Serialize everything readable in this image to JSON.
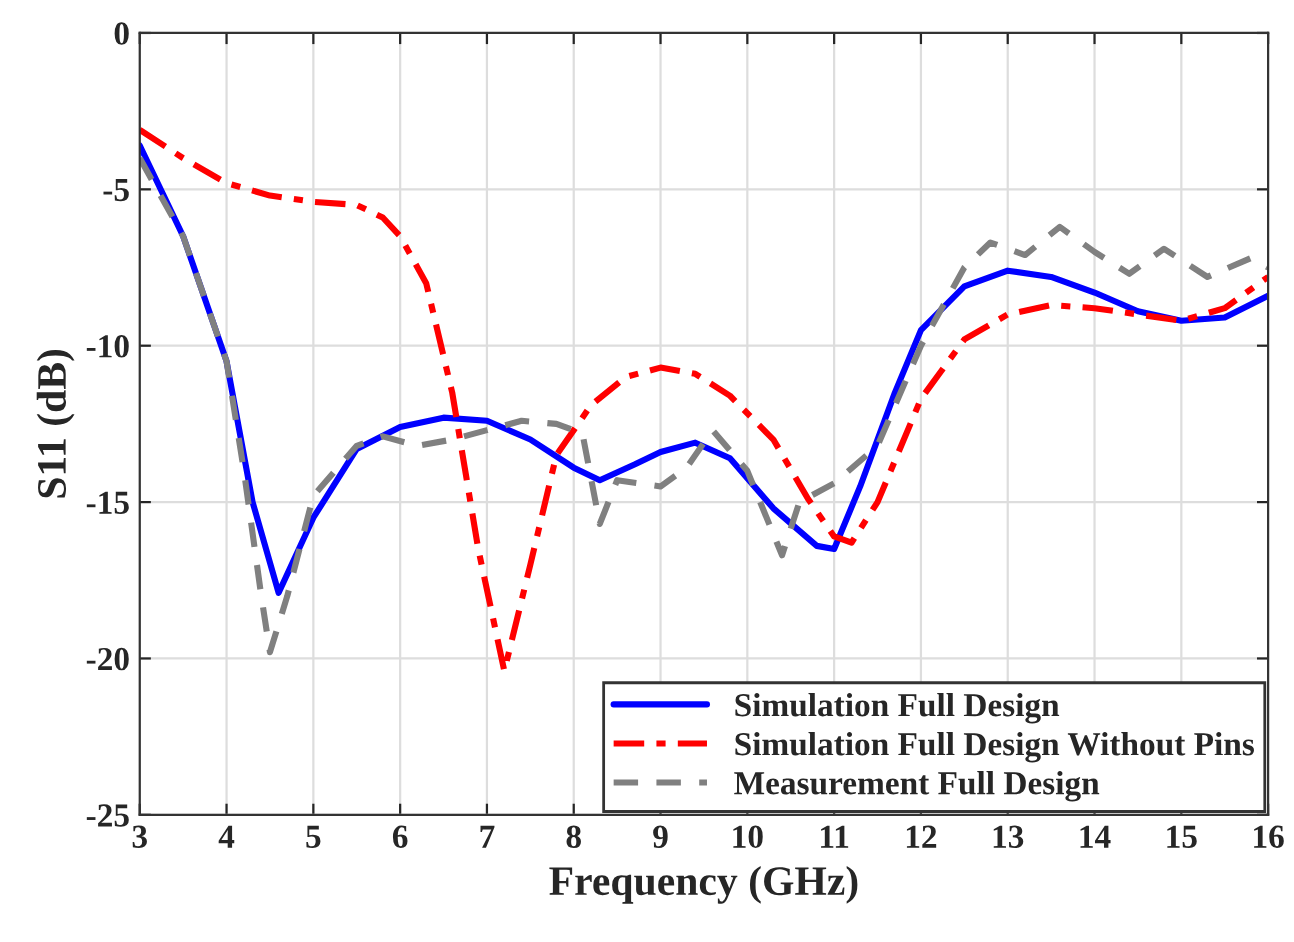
{
  "chart_data": {
    "type": "line",
    "xlabel": "Frequency (GHz)",
    "ylabel": "S11 (dB)",
    "xlim": [
      3,
      16
    ],
    "xticks": [
      3,
      4,
      5,
      6,
      7,
      8,
      9,
      10,
      11,
      12,
      13,
      14,
      15,
      16
    ],
    "ylim": [
      -25,
      0
    ],
    "yticks": [
      -25,
      -20,
      -15,
      -10,
      -5,
      0
    ],
    "grid": true,
    "legend": "bottom right",
    "series": [
      {
        "name": "Simulation Full Design",
        "color": "#0000ff",
        "line_style": "solid",
        "x": [
          3,
          3.5,
          4,
          4.3,
          4.6,
          5,
          5.5,
          6,
          6.5,
          7,
          7.5,
          8,
          8.3,
          8.7,
          9,
          9.4,
          9.8,
          10.3,
          10.8,
          11,
          11.3,
          11.7,
          12,
          12.5,
          13,
          13.5,
          14,
          14.5,
          15,
          15.5,
          16
        ],
        "values": [
          -3.6,
          -6.5,
          -10.5,
          -15,
          -17.9,
          -15.5,
          -13.3,
          -12.6,
          -12.3,
          -12.4,
          -13,
          -13.9,
          -14.3,
          -13.8,
          -13.4,
          -13.1,
          -13.6,
          -15.2,
          -16.4,
          -16.5,
          -14.5,
          -11.5,
          -9.5,
          -8.1,
          -7.6,
          -7.8,
          -8.3,
          -8.9,
          -9.2,
          -9.1,
          -8.4
        ]
      },
      {
        "name": "Simulation Full Design Without Pins",
        "color": "#ff0000",
        "line_style": "dashdot",
        "x": [
          3,
          3.5,
          4,
          4.5,
          5,
          5.5,
          5.8,
          6,
          6.3,
          6.6,
          6.9,
          7.2,
          7.5,
          7.8,
          8.2,
          8.6,
          9,
          9.4,
          9.8,
          10.3,
          10.7,
          11,
          11.2,
          11.5,
          12,
          12.5,
          13,
          13.5,
          14,
          14.5,
          15,
          15.5,
          16
        ],
        "values": [
          -3.1,
          -4.0,
          -4.8,
          -5.2,
          -5.4,
          -5.5,
          -5.9,
          -6.5,
          -8.0,
          -11.5,
          -16.5,
          -20.4,
          -17,
          -13.5,
          -11.9,
          -11.0,
          -10.7,
          -10.9,
          -11.6,
          -13.0,
          -14.9,
          -16.1,
          -16.3,
          -15,
          -11.7,
          -9.8,
          -9.0,
          -8.7,
          -8.8,
          -9.0,
          -9.2,
          -8.8,
          -7.8
        ]
      },
      {
        "name": "Measurement Full Design",
        "color": "#808080",
        "line_style": "dashed",
        "x": [
          3,
          3.5,
          4,
          4.2,
          4.4,
          4.5,
          4.7,
          5,
          5.5,
          5.8,
          6.2,
          6.6,
          7,
          7.4,
          7.8,
          8.1,
          8.3,
          8.5,
          9,
          9.3,
          9.6,
          10,
          10.4,
          10.6,
          11,
          11.5,
          12,
          12.5,
          12.8,
          13.2,
          13.6,
          14,
          14.4,
          14.8,
          15.3,
          15.8,
          16
        ],
        "values": [
          -4,
          -6.5,
          -10.5,
          -14,
          -18,
          -19.8,
          -18,
          -14.8,
          -13.2,
          -12.9,
          -13.2,
          -13,
          -12.7,
          -12.4,
          -12.5,
          -12.8,
          -15.7,
          -14.3,
          -14.5,
          -13.9,
          -12.7,
          -14,
          -16.7,
          -15,
          -14.4,
          -13.2,
          -10,
          -7.5,
          -6.7,
          -7.1,
          -6.2,
          -7,
          -7.7,
          -6.9,
          -7.8,
          -7.2,
          -7.5
        ]
      }
    ]
  }
}
